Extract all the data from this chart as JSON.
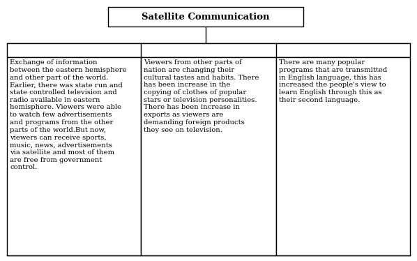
{
  "title": "Satellite Communication",
  "box1_text": "Exchange of information\nbetween the eastern hemisphere\nand other part of the world.\nEarlier, there was state run and\nstate controlled television and\nradio available in eastern\nhemisphere. Viewers were able\nto watch few advertisements\nand programs from the other\nparts of the world.But now,\nviewers can receive sports,\nmusic, news, advertisements\nvia satellite and most of them\nare free from government\ncontrol.",
  "box2_text": "Viewers from other parts of\nnation are changing their\ncultural tastes and habits. There\nhas been increase in the\ncopying of clothes of popular\nstars or television personalities.\nThere has been increase in\nexports as viewers are\ndemanding foreign products\nthey see on television.",
  "box3_text": "There are many popular\nprograms that are transmitted\nin English language, this has\nincreased the people's view to\nlearn English through this as\ntheir second language.",
  "bg_color": "#ffffff",
  "border_color": "#000000",
  "text_color": "#000000",
  "title_fontsize": 9.5,
  "body_fontsize": 7.2,
  "fig_width": 5.98,
  "fig_height": 3.74,
  "dpi": 100
}
